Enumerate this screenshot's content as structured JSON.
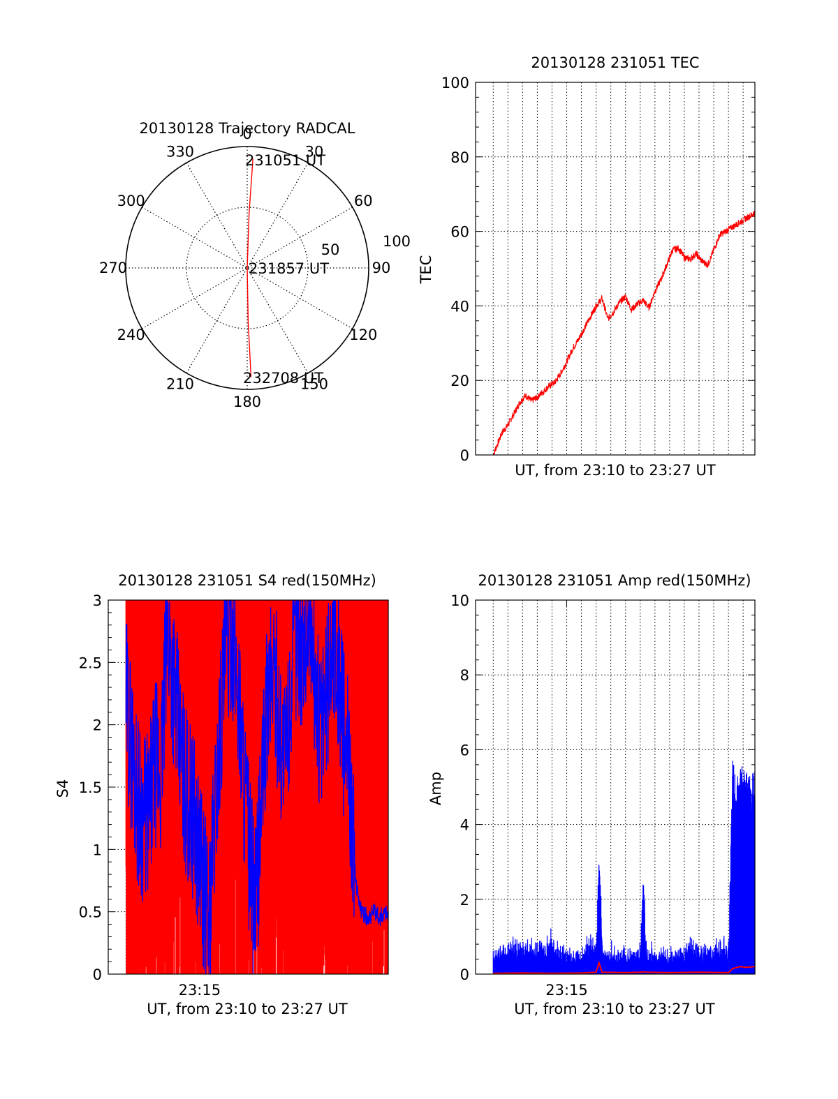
{
  "colors": {
    "red": "#ff0000",
    "blue": "#0000ff",
    "axis": "#000000",
    "grid": "#000000"
  },
  "chart_data": [
    {
      "id": "trajectory",
      "type": "polar",
      "title": "20130128 Trajectory RADCAL",
      "angle_labels": [
        "0",
        "30",
        "60",
        "90",
        "120",
        "150",
        "180",
        "210",
        "240",
        "270",
        "300",
        "330"
      ],
      "radial_tick_labels": [
        "50",
        "100"
      ],
      "rlim": [
        0,
        100
      ],
      "grid": true,
      "annotations": [
        "231051 UT",
        "231857 UT",
        "232708 UT"
      ],
      "track": {
        "azimuth_deg": [
          3,
          2,
          0,
          180,
          179,
          178
        ],
        "r": [
          90,
          45,
          0,
          0,
          45,
          90
        ]
      }
    },
    {
      "id": "tec",
      "type": "line",
      "title": "20130128 231051 TEC",
      "xlabel": "UT, from 23:10 to 23:27 UT",
      "ylabel": "TEC",
      "yticks": [
        "0",
        "20",
        "40",
        "60",
        "80",
        "100"
      ],
      "ylim": [
        0,
        100
      ],
      "x_unit": "minutes after 23:10 UT",
      "xlim": [
        -1.2,
        17.8
      ],
      "grid": true,
      "series": [
        {
          "color": "#ff0000",
          "x": [
            0,
            0.3,
            0.6,
            1.0,
            1.4,
            1.8,
            2.2,
            2.6,
            3.0,
            3.4,
            3.8,
            4.2,
            4.6,
            5.0,
            5.4,
            5.8,
            6.2,
            6.6,
            7.0,
            7.4,
            7.8,
            8.2,
            8.6,
            9.0,
            9.4,
            9.8,
            10.2,
            10.6,
            11.0,
            11.4,
            11.8,
            12.2,
            12.6,
            13.0,
            13.4,
            13.8,
            14.2,
            14.6,
            15.0,
            15.4,
            15.8,
            16.2,
            16.6,
            17.0,
            17.4,
            17.8
          ],
          "y": [
            0,
            3,
            6,
            8,
            11,
            14,
            16,
            14.5,
            15.5,
            17,
            18.5,
            19.5,
            22,
            25,
            28.5,
            31,
            34,
            37,
            40,
            42,
            36.5,
            38.5,
            41,
            42.5,
            39,
            40.5,
            41.5,
            39.5,
            44,
            47,
            51,
            55,
            55.5,
            53,
            52.5,
            54,
            52,
            51,
            55,
            59,
            60,
            61,
            62,
            63,
            64,
            65
          ]
        }
      ]
    },
    {
      "id": "s4",
      "type": "line",
      "title": "20130128 231051 S4 red(150MHz)",
      "xlabel": "UT, from 23:10 to 23:27 UT",
      "ylabel": "S4",
      "xticks": [
        "23:15"
      ],
      "yticks": [
        "0",
        "0.5",
        "1",
        "1.5",
        "2",
        "2.5",
        "3"
      ],
      "ylim": [
        0,
        3
      ],
      "x_unit": "minutes after 23:10 UT",
      "xlim": [
        -1.2,
        17.8
      ],
      "grid": true,
      "series": [
        {
          "color": "#ff0000",
          "note": "dense red bars, mostly at full scale",
          "range": [
            0,
            3
          ]
        },
        {
          "color": "#0000ff",
          "x": [
            0,
            0.4,
            0.8,
            1.2,
            1.6,
            2.0,
            2.4,
            2.8,
            3.2,
            3.6,
            4.0,
            4.4,
            4.8,
            5.2,
            5.6,
            6.0,
            6.4,
            6.8,
            7.2,
            7.6,
            8.0,
            8.4,
            8.8,
            9.2,
            9.6,
            10.0,
            10.4,
            10.8,
            11.2,
            11.6,
            12.0,
            12.4,
            12.8,
            13.2,
            13.6,
            14.0,
            14.4,
            14.8,
            15.2,
            15.6,
            16.0,
            16.4,
            16.8,
            17.2,
            17.6,
            17.8
          ],
          "y": [
            2.2,
            1.8,
            1.4,
            1.25,
            1.3,
            1.7,
            1.6,
            2.8,
            2.4,
            1.9,
            1.5,
            1.35,
            1.1,
            0.8,
            0.4,
            1.2,
            2.0,
            2.6,
            2.8,
            2.3,
            1.6,
            0.9,
            0.5,
            1.4,
            2.2,
            2.5,
            2.0,
            1.7,
            2.3,
            2.8,
            2.6,
            2.9,
            2.4,
            1.9,
            2.2,
            2.7,
            2.5,
            1.9,
            1.6,
            0.7,
            0.5,
            0.45,
            0.5,
            0.45,
            0.5,
            0.48
          ]
        }
      ]
    },
    {
      "id": "amp",
      "type": "line",
      "title": "20130128 231051 Amp red(150MHz)",
      "xlabel": "UT, from 23:10 to 23:27 UT",
      "ylabel": "Amp",
      "xticks": [
        "23:15"
      ],
      "yticks": [
        "0",
        "2",
        "4",
        "6",
        "8",
        "10"
      ],
      "ylim": [
        0,
        10
      ],
      "x_unit": "minutes after 23:10 UT",
      "xlim": [
        -1.2,
        17.8
      ],
      "grid": true,
      "series": [
        {
          "color": "#0000ff",
          "x": [
            0,
            0.5,
            1.0,
            1.5,
            2.0,
            2.5,
            3.0,
            3.5,
            4.0,
            4.5,
            5.0,
            5.5,
            6.0,
            6.5,
            7.0,
            7.2,
            7.5,
            8.0,
            8.5,
            9.0,
            9.5,
            10.0,
            10.2,
            10.5,
            11.0,
            11.5,
            12.0,
            12.5,
            13.0,
            13.5,
            14.0,
            14.5,
            15.0,
            15.5,
            16.0,
            16.3,
            16.5,
            17.0,
            17.5,
            17.8
          ],
          "y": [
            0.7,
            0.9,
            1.0,
            1.05,
            1.1,
            1.0,
            1.0,
            0.9,
            1.3,
            0.9,
            0.8,
            0.8,
            0.7,
            1.2,
            0.9,
            3.2,
            0.8,
            0.7,
            0.7,
            0.8,
            0.7,
            0.8,
            2.7,
            0.8,
            0.7,
            0.9,
            0.7,
            0.7,
            0.8,
            1.2,
            0.8,
            0.9,
            0.8,
            1.0,
            0.8,
            5.9,
            5.4,
            5.6,
            5.3,
            5.6
          ]
        },
        {
          "color": "#ff0000",
          "x": [
            0,
            2,
            4,
            6,
            7.0,
            7.2,
            7.4,
            9,
            10,
            10.2,
            10.4,
            12,
            14,
            16.0,
            16.3,
            16.8,
            17.2,
            17.8
          ],
          "y": [
            0.02,
            0.03,
            0.02,
            0.03,
            0.05,
            0.3,
            0.05,
            0.04,
            0.05,
            0.06,
            0.05,
            0.04,
            0.05,
            0.04,
            0.15,
            0.2,
            0.18,
            0.2
          ]
        }
      ]
    }
  ]
}
